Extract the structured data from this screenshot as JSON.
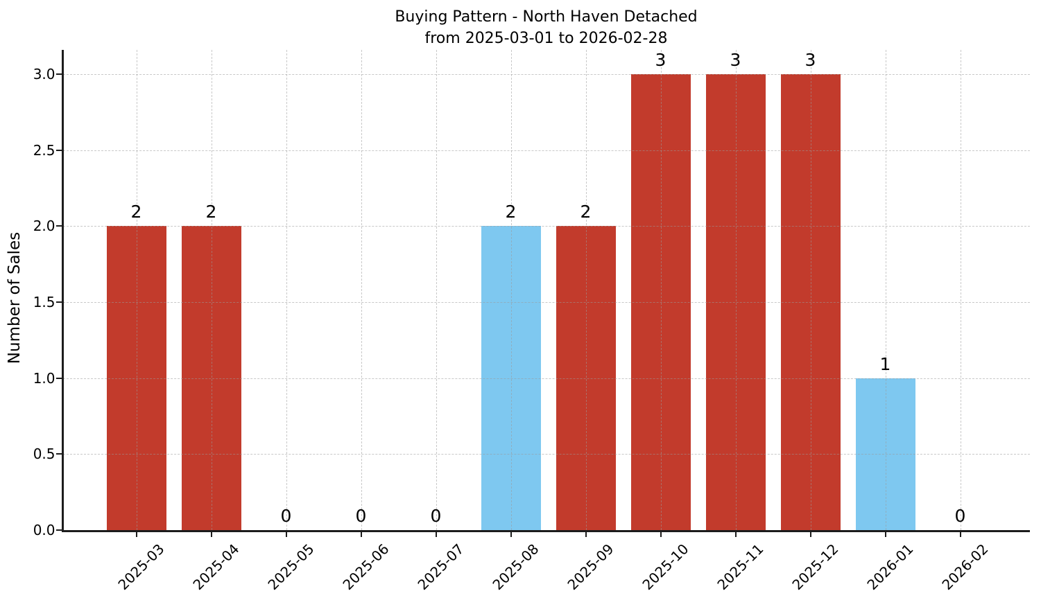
{
  "figure": {
    "title": "Buying Pattern - North Haven Detached",
    "subtitle": "from 2025-03-01 to 2026-02-28",
    "ylabel": "Number of Sales"
  },
  "colors": {
    "bar_red": "#c23b2c",
    "bar_blue": "#7ec8f0",
    "grid": "#c8c8c8",
    "axis": "#1c1c1c",
    "text": "#000000",
    "background": "#ffffff"
  },
  "chart_data": {
    "type": "bar",
    "title": "Buying Pattern - North Haven Detached",
    "subtitle": "from 2025-03-01 to 2026-02-28",
    "xlabel": "",
    "ylabel": "Number of Sales",
    "categories": [
      "2025-03",
      "2025-04",
      "2025-05",
      "2025-06",
      "2025-07",
      "2025-08",
      "2025-09",
      "2025-10",
      "2025-11",
      "2025-12",
      "2026-01",
      "2026-02"
    ],
    "values": [
      2,
      2,
      0,
      0,
      0,
      2,
      2,
      3,
      3,
      3,
      1,
      0
    ],
    "value_labels": [
      "2",
      "2",
      "0",
      "0",
      "0",
      "2",
      "2",
      "3",
      "3",
      "3",
      "1",
      "0"
    ],
    "bar_colors": [
      "#c23b2c",
      "#c23b2c",
      "#c23b2c",
      "#c23b2c",
      "#c23b2c",
      "#7ec8f0",
      "#c23b2c",
      "#c23b2c",
      "#c23b2c",
      "#c23b2c",
      "#7ec8f0",
      "#c23b2c"
    ],
    "yticks": [
      "0.0",
      "0.5",
      "1.0",
      "1.5",
      "2.0",
      "2.5",
      "3.0"
    ],
    "ylim": [
      0,
      3.16
    ],
    "xticks_rotation": 45,
    "grid": true,
    "legend": false
  }
}
